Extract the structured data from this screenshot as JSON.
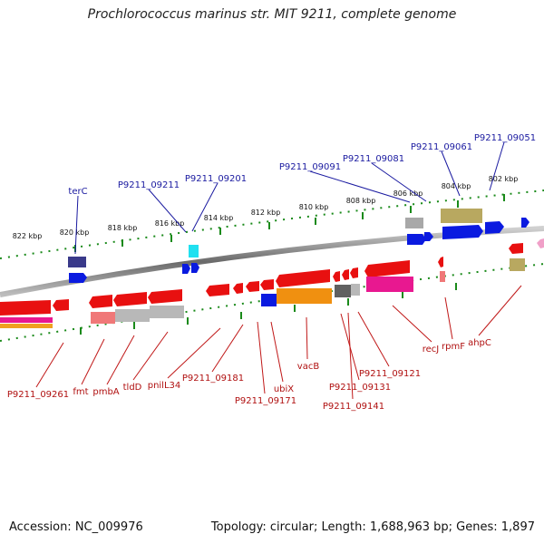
{
  "title": "Prochlorococcus marinus str. MIT 9211, complete genome",
  "footer": {
    "accession": "Accession: NC_009976",
    "topology": "Topology: circular; Length: 1,688,963 bp; Genes: 1,897"
  },
  "colors": {
    "backbone": "#8a8a8a",
    "tick": "#1a8a1a",
    "forward_label": "#1a1aa0",
    "reverse_label": "#b01010"
  },
  "scale_labels": [
    "822 kbp",
    "820 kbp",
    "818 kbp",
    "816 kbp",
    "814 kbp",
    "812 kbp",
    "810 kbp",
    "808 kbp",
    "806 kbp",
    "804 kbp",
    "802 kbp"
  ],
  "forward_genes": [
    "terC",
    "P9211_09211",
    "P9211_09201",
    "P9211_09091",
    "P9211_09081",
    "P9211_09061",
    "P9211_09051"
  ],
  "reverse_genes": [
    "P9211_09261",
    "fmt",
    "pmbA",
    "tldD",
    "pnilL34",
    "P9211_09181",
    "P9211_09171",
    "ubiX",
    "vacB",
    "P9211_09131",
    "P9211_09141",
    "P9211_09121",
    "recJ",
    "rpmF",
    "ahpC"
  ]
}
